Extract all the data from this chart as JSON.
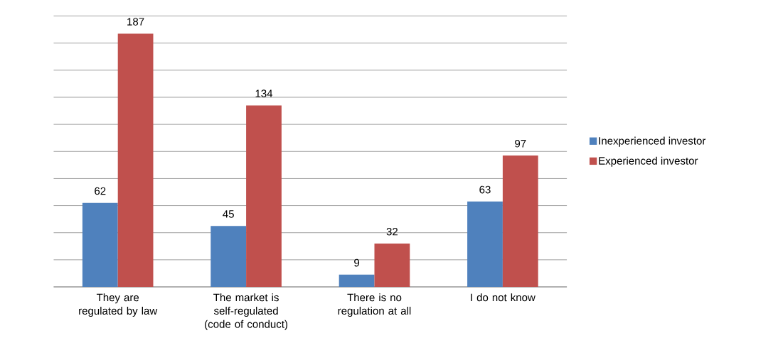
{
  "chart_data": {
    "type": "bar",
    "categories": [
      "They are regulated by law",
      "The market is self-regulated (code of conduct)",
      "There is no regulation at all",
      "I do not know"
    ],
    "series": [
      {
        "name": "Inexperienced investor",
        "color": "#4f81bd",
        "values": [
          62,
          45,
          9,
          63
        ]
      },
      {
        "name": "Experienced investor",
        "color": "#c0504d",
        "values": [
          187,
          134,
          32,
          97
        ]
      }
    ],
    "ylim": [
      0,
      200
    ],
    "yticks": [
      {
        "value": 0,
        "label": null
      },
      {
        "value": 20,
        "label": null
      },
      {
        "value": 40,
        "label": null
      },
      {
        "value": 60,
        "label": null
      },
      {
        "value": 80,
        "label": null
      },
      {
        "value": 100,
        "label": null
      },
      {
        "value": 120,
        "label": null
      },
      {
        "value": 140,
        "label": null
      },
      {
        "value": 160,
        "label": null
      },
      {
        "value": 180,
        "label": null
      },
      {
        "value": 200,
        "label": null
      }
    ],
    "tick_labels": "x",
    "grid": "y",
    "legend": "right",
    "data_labels": true
  }
}
